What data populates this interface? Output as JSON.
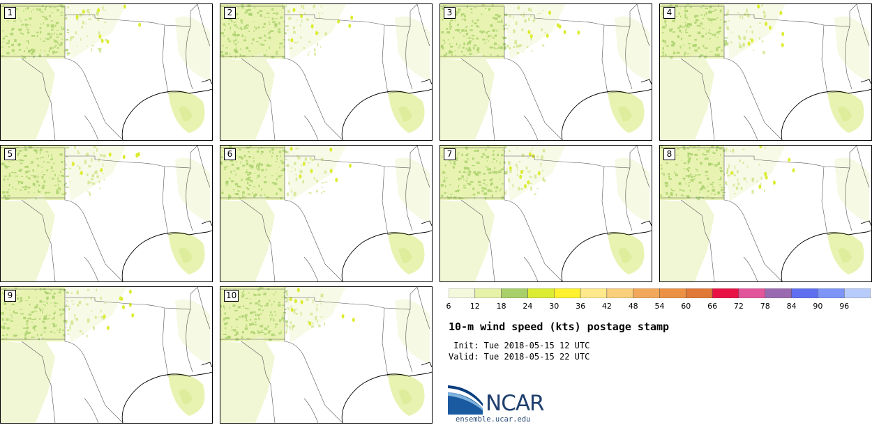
{
  "panels": [
    {
      "label": "1"
    },
    {
      "label": "2"
    },
    {
      "label": "3"
    },
    {
      "label": "4"
    },
    {
      "label": "5"
    },
    {
      "label": "6"
    },
    {
      "label": "7"
    },
    {
      "label": "8"
    },
    {
      "label": "9"
    },
    {
      "label": "10"
    }
  ],
  "colorbar": {
    "ticks": [
      "6",
      "12",
      "18",
      "24",
      "30",
      "36",
      "42",
      "48",
      "54",
      "60",
      "66",
      "72",
      "78",
      "84",
      "90",
      "96"
    ],
    "colors": [
      "#f4f8dc",
      "#e6f2a8",
      "#a8cf6a",
      "#dcec32",
      "#fff12e",
      "#ffe98a",
      "#f9cf7c",
      "#f2a85a",
      "#ec9144",
      "#e07838",
      "#e81245",
      "#e3559a",
      "#9a6ab0",
      "#5e6ff0",
      "#7c95f7",
      "#b8ccfb"
    ]
  },
  "map_legend": {
    "variable": "10-m wind speed",
    "units": "kts"
  },
  "title": "10-m wind speed (kts) postage stamp",
  "init": {
    "label": " Init:",
    "value": "Tue 2018-05-15 12 UTC"
  },
  "valid": {
    "label": "Valid:",
    "value": "Tue 2018-05-15 22 UTC"
  },
  "logo": {
    "name": "NCAR",
    "url": "ensemble.ucar.edu"
  }
}
